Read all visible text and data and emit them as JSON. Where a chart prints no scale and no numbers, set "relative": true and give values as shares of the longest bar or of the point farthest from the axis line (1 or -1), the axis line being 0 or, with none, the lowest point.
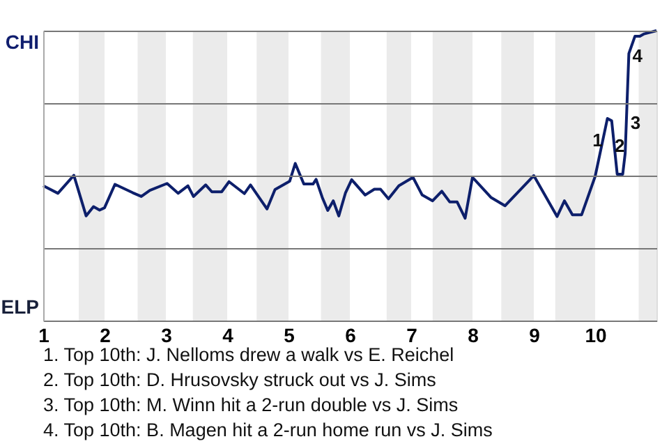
{
  "chart_data": {
    "type": "line",
    "x": [
      1.0,
      1.24,
      1.5,
      1.7,
      1.82,
      1.92,
      2.0,
      2.17,
      2.46,
      2.6,
      2.74,
      3.02,
      3.2,
      3.36,
      3.45,
      3.65,
      3.75,
      3.91,
      4.03,
      4.28,
      4.38,
      4.65,
      4.78,
      5.02,
      5.11,
      5.25,
      5.4,
      5.45,
      5.55,
      5.64,
      5.73,
      5.82,
      5.93,
      6.03,
      6.25,
      6.4,
      6.5,
      6.63,
      6.8,
      7.03,
      7.18,
      7.35,
      7.5,
      7.63,
      7.75,
      7.88,
      8.0,
      8.3,
      8.53,
      9.0,
      9.38,
      9.5,
      9.63,
      9.78,
      10.0,
      10.2,
      10.27,
      10.36,
      10.45,
      10.49,
      10.55,
      10.65,
      10.73,
      10.8,
      11.0
    ],
    "series": [
      {
        "color": "#0d1f6b",
        "values": [
          0.465,
          0.439,
          0.501,
          0.361,
          0.393,
          0.381,
          0.389,
          0.47,
          0.441,
          0.428,
          0.449,
          0.473,
          0.439,
          0.465,
          0.428,
          0.468,
          0.444,
          0.444,
          0.479,
          0.438,
          0.468,
          0.385,
          0.452,
          0.481,
          0.542,
          0.471,
          0.471,
          0.487,
          0.425,
          0.38,
          0.413,
          0.361,
          0.441,
          0.486,
          0.433,
          0.453,
          0.453,
          0.42,
          0.465,
          0.494,
          0.433,
          0.413,
          0.446,
          0.409,
          0.409,
          0.353,
          0.494,
          0.425,
          0.396,
          0.5,
          0.359,
          0.413,
          0.365,
          0.365,
          0.497,
          0.697,
          0.689,
          0.505,
          0.505,
          0.577,
          0.921,
          0.981,
          0.981,
          0.989,
          1.0
        ]
      }
    ],
    "relative": true,
    "xlim": [
      1,
      11
    ],
    "xticks": [
      1,
      2,
      3,
      4,
      5,
      6,
      7,
      8,
      9,
      10
    ],
    "grid": "y",
    "marker": "none",
    "line_style": "solid",
    "bands": [
      {
        "axis": "x",
        "from": 1.58,
        "to": 2,
        "color": "#ebebeb"
      },
      {
        "axis": "x",
        "from": 2.54,
        "to": 3,
        "color": "#ebebeb"
      },
      {
        "axis": "x",
        "from": 3.44,
        "to": 4,
        "color": "#ebebeb"
      },
      {
        "axis": "x",
        "from": 4.48,
        "to": 5,
        "color": "#ebebeb"
      },
      {
        "axis": "x",
        "from": 5.53,
        "to": 6,
        "color": "#ebebeb"
      },
      {
        "axis": "x",
        "from": 6.6,
        "to": 7,
        "color": "#ebebeb"
      },
      {
        "axis": "x",
        "from": 7.35,
        "to": 8,
        "color": "#ebebeb"
      },
      {
        "axis": "x",
        "from": 8.47,
        "to": 9,
        "color": "#ebebeb"
      },
      {
        "axis": "x",
        "from": 9.35,
        "to": 10,
        "color": "#ebebeb"
      },
      {
        "axis": "x",
        "from": 10.71,
        "to": 11,
        "color": "#ebebeb"
      }
    ],
    "annotations": [
      "CHI",
      "ELP",
      {
        "text": "1",
        "x": 10.04,
        "y": 0.62
      },
      {
        "text": "2",
        "x": 10.4,
        "y": 0.6
      },
      {
        "text": "3",
        "x": 10.66,
        "y": 0.68
      },
      {
        "text": "4",
        "x": 10.69,
        "y": 0.91
      },
      "1. Top 10th: J. Nelloms drew a walk vs E. Reichel",
      "2. Top 10th: D. Hrusovsky struck out vs J. Sims",
      "3. Top 10th: M. Winn hit a 2-run double vs J. Sims",
      "4. Top 10th: B. Magen hit a 2-run home run vs J. Sims"
    ]
  }
}
